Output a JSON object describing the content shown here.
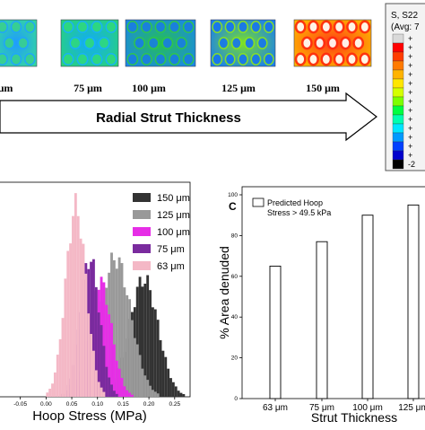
{
  "top_panel": {
    "thickness_labels": [
      "μm",
      "75 μm",
      "100 μm",
      "125 μm",
      "150 μm"
    ],
    "arrow_label": "Radial Strut Thickness",
    "legend_title_line1": "S, S22",
    "legend_title_line2": "(Avg: 7",
    "legend_ticks": [
      "+",
      "+",
      "+",
      "+",
      "+",
      "+",
      "+",
      "+",
      "+",
      "+",
      "+",
      "+",
      "+",
      "+",
      "-2"
    ],
    "colormap": [
      "#d9d9d9",
      "#ff0000",
      "#ff3c00",
      "#ff7a00",
      "#ffb300",
      "#ffe600",
      "#d4ff00",
      "#7dff00",
      "#00ff40",
      "#00ffb0",
      "#00e6ff",
      "#0099ff",
      "#0040ff",
      "#0000cc",
      "#000000"
    ]
  },
  "panel_c_label": "C",
  "chart_data": [
    {
      "type": "area",
      "title": "",
      "xlabel": "Hoop Stress (MPa)",
      "ylabel": "",
      "xlim": [
        -0.1,
        0.28
      ],
      "xticks": [
        "-0.05",
        "0.00",
        "0.05",
        "0.10",
        "0.15",
        "0.20",
        "0.25"
      ],
      "xtick_values": [
        -0.05,
        0.0,
        0.05,
        0.1,
        0.15,
        0.2,
        0.25
      ],
      "legend_position": "top-right",
      "series": [
        {
          "name": "150 μm",
          "color": "#333333",
          "mean": 0.19,
          "sd": 0.028,
          "peak": 0.62
        },
        {
          "name": "125 μm",
          "color": "#999999",
          "mean": 0.135,
          "sd": 0.03,
          "peak": 0.73
        },
        {
          "name": "100 μm",
          "color": "#e62ee6",
          "mean": 0.105,
          "sd": 0.022,
          "peak": 0.61
        },
        {
          "name": "75 μm",
          "color": "#7a2b9e",
          "mean": 0.085,
          "sd": 0.019,
          "peak": 0.73
        },
        {
          "name": "63 μm",
          "color": "#f4b8c6",
          "mean": 0.058,
          "sd": 0.02,
          "peak": 1.0
        }
      ]
    },
    {
      "type": "bar",
      "title": "",
      "xlabel": "Strut Thickness",
      "ylabel": "% Area denuded",
      "ylim": [
        0,
        100
      ],
      "yticks": [
        "0",
        "20",
        "40",
        "60",
        "80",
        "100"
      ],
      "ytick_values": [
        0,
        20,
        40,
        60,
        80,
        100
      ],
      "categories": [
        "63 μm",
        "75 μm",
        "100 μm",
        "125 μm"
      ],
      "values": [
        65,
        77,
        90,
        95
      ],
      "legend": [
        "Predicted Hoop",
        "Stress > 49.5 kPa"
      ],
      "legend_position": "top-left"
    }
  ]
}
